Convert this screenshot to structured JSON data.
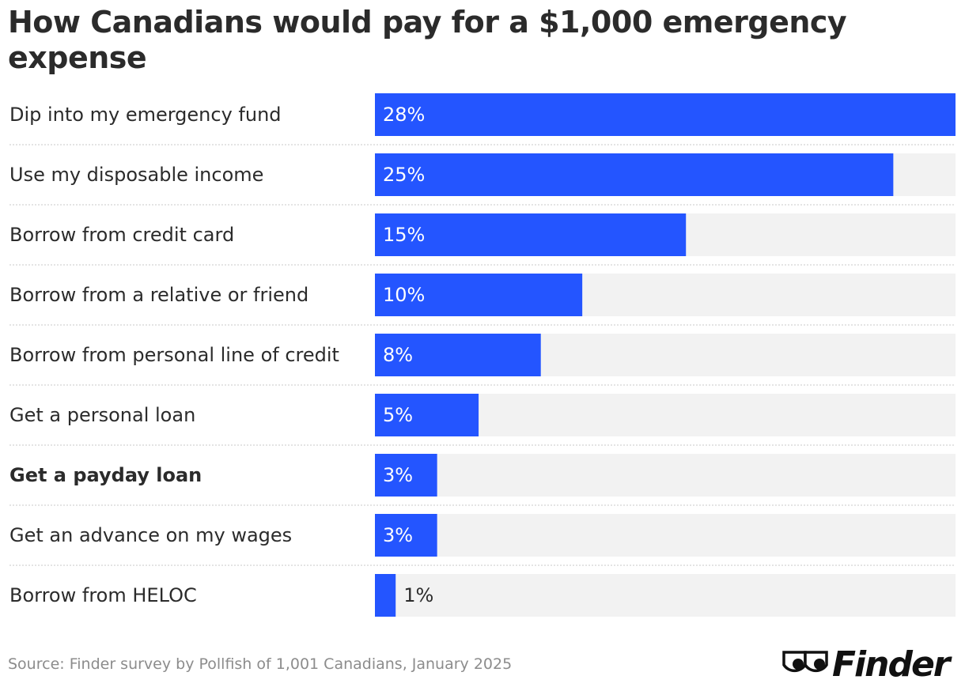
{
  "colors": {
    "bar": "#2455ff",
    "track": "#f2f2f2",
    "text": "#2b2b2b",
    "muted": "#8c8c8c",
    "divider": "#c8c8c8"
  },
  "chart_data": {
    "type": "bar",
    "orientation": "horizontal",
    "title": "How Canadians would pay for a $1,000 emergency expense",
    "categories": [
      "Dip into my emergency fund",
      "Use my disposable income",
      "Borrow from credit card",
      "Borrow from a relative or friend",
      "Borrow from personal line of credit",
      "Get a personal loan",
      "Get a payday loan",
      "Get an advance on my wages",
      "Borrow from HELOC"
    ],
    "values": [
      28,
      25,
      15,
      10,
      8,
      5,
      3,
      3,
      1
    ],
    "value_labels": [
      "28%",
      "25%",
      "15%",
      "10%",
      "8%",
      "5%",
      "3%",
      "3%",
      "1%"
    ],
    "highlighted_category": "Get a payday loan",
    "xlim": [
      0,
      28
    ],
    "unit": "%",
    "grid": false,
    "legend": "none"
  },
  "source": "Source: Finder survey by Pollfish of 1,001 Canadians, January 2025",
  "logo": {
    "text": "Finder",
    "icon": "finder-eyes-icon"
  }
}
